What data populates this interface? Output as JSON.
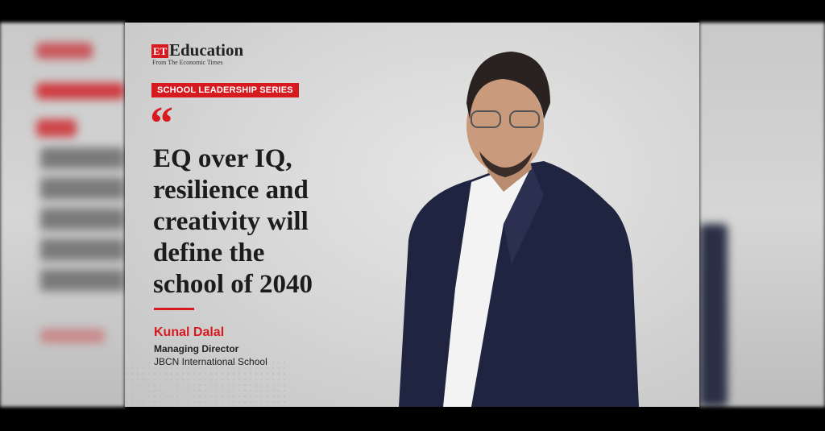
{
  "brand": {
    "mark": "ET",
    "name": "Education",
    "tagline": "From The Economic Times"
  },
  "series_label": "SCHOOL LEADERSHIP SERIES",
  "quote_mark": "“",
  "quote_lines": [
    "EQ over IQ,",
    "resilience and",
    "creativity will",
    "define the",
    "school of 2040"
  ],
  "person": {
    "name": "Kunal Dalal",
    "role": "Managing Director",
    "organization": "JBCN International School"
  }
}
